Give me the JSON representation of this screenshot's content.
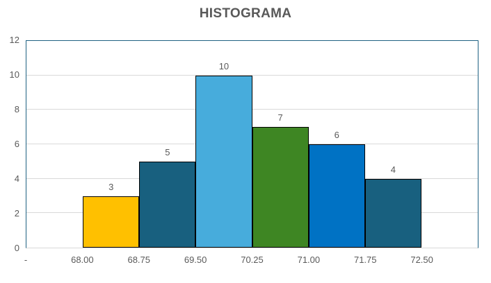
{
  "colors": {
    "background": "#FFFFFF",
    "title_text": "#595959",
    "axis_text": "#595959",
    "plot_border": "#1E6182",
    "gridline": "#D9D9D9",
    "axis_line": "#D9D9D9",
    "bar_border": "#000000"
  },
  "chart_data": {
    "type": "bar",
    "title": "HISTOGRAMA",
    "xlabel": "",
    "ylabel": "",
    "ylim": [
      0,
      12
    ],
    "y_ticks": [
      0,
      2,
      4,
      6,
      8,
      10,
      12
    ],
    "x_axis_labels": [
      "-",
      "68.00",
      "68.75",
      "69.50",
      "70.25",
      "71.00",
      "71.75",
      "72.50"
    ],
    "categories": [
      "68.00-68.75",
      "68.75-69.50",
      "69.50-70.25",
      "70.25-71.00",
      "71.00-71.75",
      "71.75-72.50"
    ],
    "values": [
      3,
      5,
      10,
      7,
      6,
      4
    ],
    "bins": [
      {
        "from": "68.00",
        "to": "68.75",
        "value": 3,
        "color": "#FFC000"
      },
      {
        "from": "68.75",
        "to": "69.50",
        "value": 5,
        "color": "#18607F"
      },
      {
        "from": "69.50",
        "to": "70.25",
        "value": 10,
        "color": "#47ACDC"
      },
      {
        "from": "70.25",
        "to": "71.00",
        "value": 7,
        "color": "#3E8623"
      },
      {
        "from": "71.00",
        "to": "71.75",
        "value": 6,
        "color": "#0072C4"
      },
      {
        "from": "71.75",
        "to": "72.50",
        "value": 4,
        "color": "#18607F"
      }
    ],
    "grid": true,
    "legend": false,
    "data_labels": true
  }
}
